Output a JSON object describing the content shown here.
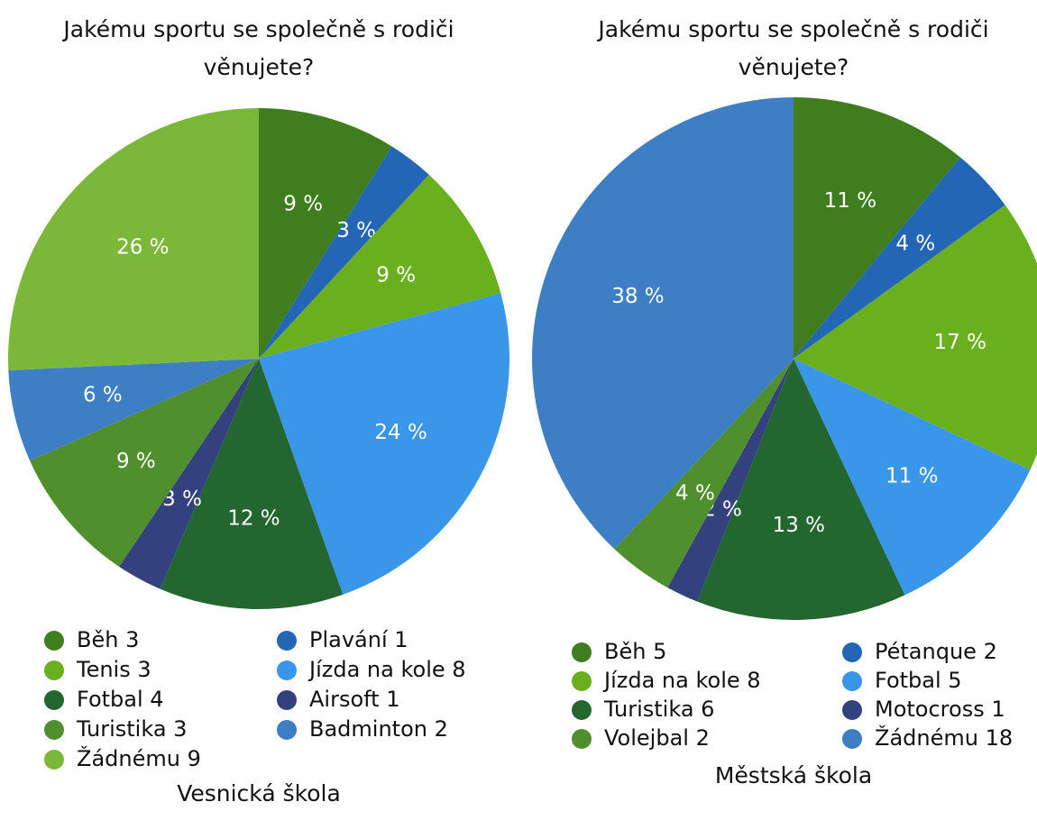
{
  "chart_data": [
    {
      "type": "pie",
      "title": "Jakému sportu se společně s rodiči věnujete?",
      "caption": "Vesnická škola",
      "categories": [
        "Běh",
        "Plavání",
        "Tenis",
        "Jízda na kole",
        "Fotbal",
        "Airsoft",
        "Turistika",
        "Badminton",
        "Žádnému"
      ],
      "counts": [
        3,
        1,
        3,
        8,
        4,
        1,
        3,
        2,
        9
      ],
      "values": [
        9,
        3,
        9,
        24,
        12,
        3,
        9,
        6,
        26
      ],
      "value_labels": [
        "9 %",
        "3 %",
        "9 %",
        "24 %",
        "12 %",
        "3 %",
        "9 %",
        "6 %",
        "26 %"
      ],
      "colors": [
        "#3f7d1f",
        "#2266b5",
        "#6aaf1e",
        "#3a96e8",
        "#236630",
        "#34417f",
        "#4f8f2e",
        "#3d7ec4",
        "#7bb83a"
      ]
    },
    {
      "type": "pie",
      "title": "Jakému sportu se společně s rodiči věnujete?",
      "caption": "Městská škola",
      "categories": [
        "Běh",
        "Pétanque",
        "Jízda na kole",
        "Fotbal",
        "Turistika",
        "Motocross",
        "Volejbal",
        "Žádnému"
      ],
      "counts": [
        5,
        2,
        8,
        5,
        6,
        1,
        2,
        18
      ],
      "values": [
        11,
        4,
        17,
        11,
        13,
        2,
        4,
        38
      ],
      "value_labels": [
        "11 %",
        "4 %",
        "17 %",
        "11 %",
        "13 %",
        "2 %",
        "4 %",
        "38 %"
      ],
      "colors": [
        "#3f7d1f",
        "#2266b5",
        "#6aaf1e",
        "#3a96e8",
        "#236630",
        "#34417f",
        "#4f8f2e",
        "#3d7ec4"
      ]
    }
  ]
}
